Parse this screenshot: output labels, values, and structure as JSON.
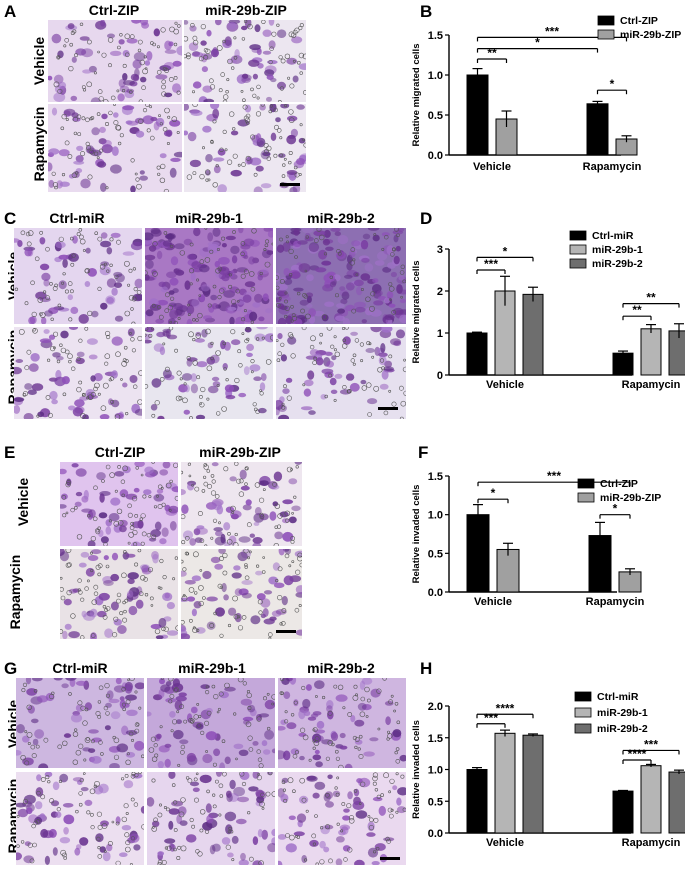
{
  "panels": {
    "A": {
      "letter": "A",
      "columns": [
        "Ctrl-ZIP",
        "miR-29b-ZIP"
      ],
      "rows": [
        "Vehicle",
        "Rapamycin"
      ],
      "tiles": [
        [
          "#e7d8ee",
          "#ece6f0"
        ],
        [
          "#e9dbef",
          "#ede7f1"
        ]
      ]
    },
    "C": {
      "letter": "C",
      "columns": [
        "Ctrl-miR",
        "miR-29b-1",
        "miR-29b-2"
      ],
      "rows": [
        "Vehicle",
        "Rapamycin"
      ],
      "tiles": [
        [
          "#e4d6ef",
          "#a978c4",
          "#8d6fb2"
        ],
        [
          "#ece3f1",
          "#e8e6ef",
          "#e6e0ef"
        ]
      ]
    },
    "E": {
      "letter": "E",
      "columns": [
        "Ctrl-ZIP",
        "miR-29b-ZIP"
      ],
      "rows": [
        "Vehicle",
        "Rapamycin"
      ],
      "tiles": [
        [
          "#e0c4ee",
          "#eee6ef"
        ],
        [
          "#e9e2e6",
          "#ece8e6"
        ]
      ]
    },
    "G": {
      "letter": "G",
      "columns": [
        "Ctrl-miR",
        "miR-29b-1",
        "miR-29b-2"
      ],
      "rows": [
        "Vehicle",
        "Rapamycin"
      ],
      "tiles": [
        [
          "#cdb7e0",
          "#c4a8da",
          "#cfb6e0"
        ],
        [
          "#ecdff0",
          "#e6d6ee",
          "#ead9ef"
        ]
      ]
    }
  },
  "chart_data": [
    {
      "panel": "B",
      "type": "bar",
      "categories": [
        "Vehicle",
        "Rapamycin"
      ],
      "ylabel": "Relative migrated cells",
      "ylim": [
        0,
        1.5
      ],
      "yticks": [
        "0.0",
        "0.5",
        "1.0",
        "1.5"
      ],
      "series": [
        {
          "name": "Ctrl-ZIP",
          "color": "#000000",
          "values": [
            1.0,
            0.64
          ],
          "errors": [
            0.08,
            0.03
          ]
        },
        {
          "name": "miR-29b-ZIP",
          "color": "#a0a0a0",
          "values": [
            0.45,
            0.2
          ],
          "errors": [
            0.1,
            0.04
          ]
        }
      ],
      "significance": [
        {
          "from": [
            0,
            0
          ],
          "to": [
            0,
            1
          ],
          "label": "**",
          "level": 1.2
        },
        {
          "from": [
            0,
            0
          ],
          "to": [
            1,
            0
          ],
          "label": "*",
          "level": 1.33
        },
        {
          "from": [
            0,
            0
          ],
          "to": [
            1,
            1
          ],
          "label": "***",
          "level": 1.47
        },
        {
          "from": [
            1,
            0
          ],
          "to": [
            1,
            1
          ],
          "label": "*",
          "level": 0.81
        }
      ]
    },
    {
      "panel": "D",
      "type": "bar",
      "categories": [
        "Vehicle",
        "Rapamycin"
      ],
      "ylabel": "Relative migrated cells",
      "ylim": [
        0,
        3
      ],
      "yticks": [
        "0",
        "1",
        "2",
        "3"
      ],
      "series": [
        {
          "name": "Ctrl-miR",
          "color": "#000000",
          "values": [
            1.0,
            0.52
          ],
          "errors": [
            0.02,
            0.05
          ]
        },
        {
          "name": "miR-29b-1",
          "color": "#b5b5b5",
          "values": [
            2.0,
            1.1
          ],
          "errors": [
            0.35,
            0.1
          ]
        },
        {
          "name": "miR-29b-2",
          "color": "#6e6e6e",
          "values": [
            1.92,
            1.05
          ],
          "errors": [
            0.17,
            0.17
          ]
        }
      ],
      "significance": [
        {
          "from": [
            0,
            0
          ],
          "to": [
            0,
            1
          ],
          "label": "***",
          "level": 2.5
        },
        {
          "from": [
            0,
            0
          ],
          "to": [
            0,
            2
          ],
          "label": "*",
          "level": 2.8
        },
        {
          "from": [
            1,
            0
          ],
          "to": [
            1,
            1
          ],
          "label": "**",
          "level": 1.4
        },
        {
          "from": [
            1,
            0
          ],
          "to": [
            1,
            2
          ],
          "label": "**",
          "level": 1.7
        }
      ]
    },
    {
      "panel": "F",
      "type": "bar",
      "categories": [
        "Vehicle",
        "Rapamycin"
      ],
      "ylabel": "Relative invaded cells",
      "ylim": [
        0,
        1.5
      ],
      "yticks": [
        "0.0",
        "0.5",
        "1.0",
        "1.5"
      ],
      "series": [
        {
          "name": "Ctrl-ZIP",
          "color": "#000000",
          "values": [
            1.0,
            0.73
          ],
          "errors": [
            0.13,
            0.17
          ]
        },
        {
          "name": "miR-29b-ZIP",
          "color": "#a0a0a0",
          "values": [
            0.55,
            0.26
          ],
          "errors": [
            0.08,
            0.04
          ]
        }
      ],
      "significance": [
        {
          "from": [
            0,
            0
          ],
          "to": [
            0,
            1
          ],
          "label": "*",
          "level": 1.2
        },
        {
          "from": [
            0,
            0
          ],
          "to": [
            1,
            1
          ],
          "label": "***",
          "level": 1.42
        },
        {
          "from": [
            1,
            0
          ],
          "to": [
            1,
            1
          ],
          "label": "*",
          "level": 1.0
        }
      ]
    },
    {
      "panel": "H",
      "type": "bar",
      "categories": [
        "Vehicle",
        "Rapamycin"
      ],
      "ylabel": "Relative invaded cells",
      "ylim": [
        0,
        2.0
      ],
      "yticks": [
        "0.0",
        "0.5",
        "1.0",
        "1.5",
        "2.0"
      ],
      "series": [
        {
          "name": "Ctrl-miR",
          "color": "#000000",
          "values": [
            1.0,
            0.66
          ],
          "errors": [
            0.03,
            0.01
          ]
        },
        {
          "name": "miR-29b-1",
          "color": "#b5b5b5",
          "values": [
            1.57,
            1.06
          ],
          "errors": [
            0.05,
            0.02
          ]
        },
        {
          "name": "miR-29b-2",
          "color": "#6e6e6e",
          "values": [
            1.54,
            0.96
          ],
          "errors": [
            0.02,
            0.03
          ]
        }
      ],
      "significance": [
        {
          "from": [
            0,
            0
          ],
          "to": [
            0,
            1
          ],
          "label": "***",
          "level": 1.72
        },
        {
          "from": [
            0,
            0
          ],
          "to": [
            0,
            2
          ],
          "label": "****",
          "level": 1.87
        },
        {
          "from": [
            1,
            0
          ],
          "to": [
            1,
            1
          ],
          "label": "****",
          "level": 1.15
        },
        {
          "from": [
            1,
            0
          ],
          "to": [
            1,
            2
          ],
          "label": "***",
          "level": 1.3
        }
      ]
    }
  ]
}
